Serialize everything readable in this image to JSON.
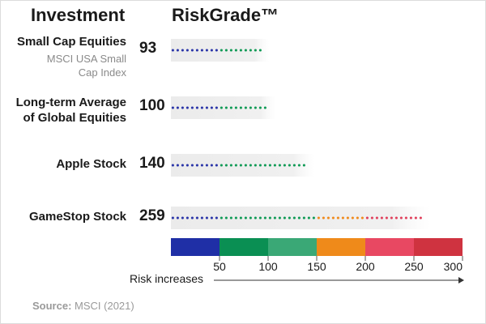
{
  "header": {
    "left": "Investment",
    "right": "RiskGrade™"
  },
  "chart_data": {
    "type": "dot-bar",
    "xlim": [
      0,
      300
    ],
    "ticks": [
      50,
      100,
      150,
      200,
      250,
      300
    ],
    "rows": [
      {
        "label": "Small Cap Equities",
        "sublabel": "MSCI USA Small Cap Index",
        "value": 93
      },
      {
        "label": "Long-term Average of Global Equities",
        "sublabel": "",
        "value": 100
      },
      {
        "label": "Apple Stock",
        "sublabel": "",
        "value": 140
      },
      {
        "label": "GameStop Stock",
        "sublabel": "",
        "value": 259
      }
    ],
    "scale_bands": [
      {
        "from": 0,
        "to": 50,
        "color": "#1f2fa6"
      },
      {
        "from": 50,
        "to": 100,
        "color": "#0a8f53"
      },
      {
        "from": 100,
        "to": 150,
        "color": "#3aa876"
      },
      {
        "from": 150,
        "to": 200,
        "color": "#ef8a1a"
      },
      {
        "from": 200,
        "to": 250,
        "color": "#e84862"
      },
      {
        "from": 250,
        "to": 300,
        "color": "#cf3340"
      }
    ],
    "dot_colors": [
      {
        "from": 0,
        "to": 50,
        "color": "#2a35a8"
      },
      {
        "from": 50,
        "to": 150,
        "color": "#0f9a55"
      },
      {
        "from": 150,
        "to": 200,
        "color": "#f08a1c"
      },
      {
        "from": 200,
        "to": 300,
        "color": "#e0405c"
      }
    ],
    "axis_caption": "Risk increases"
  },
  "source": {
    "label": "Source:",
    "text": "MSCI (2021)"
  }
}
